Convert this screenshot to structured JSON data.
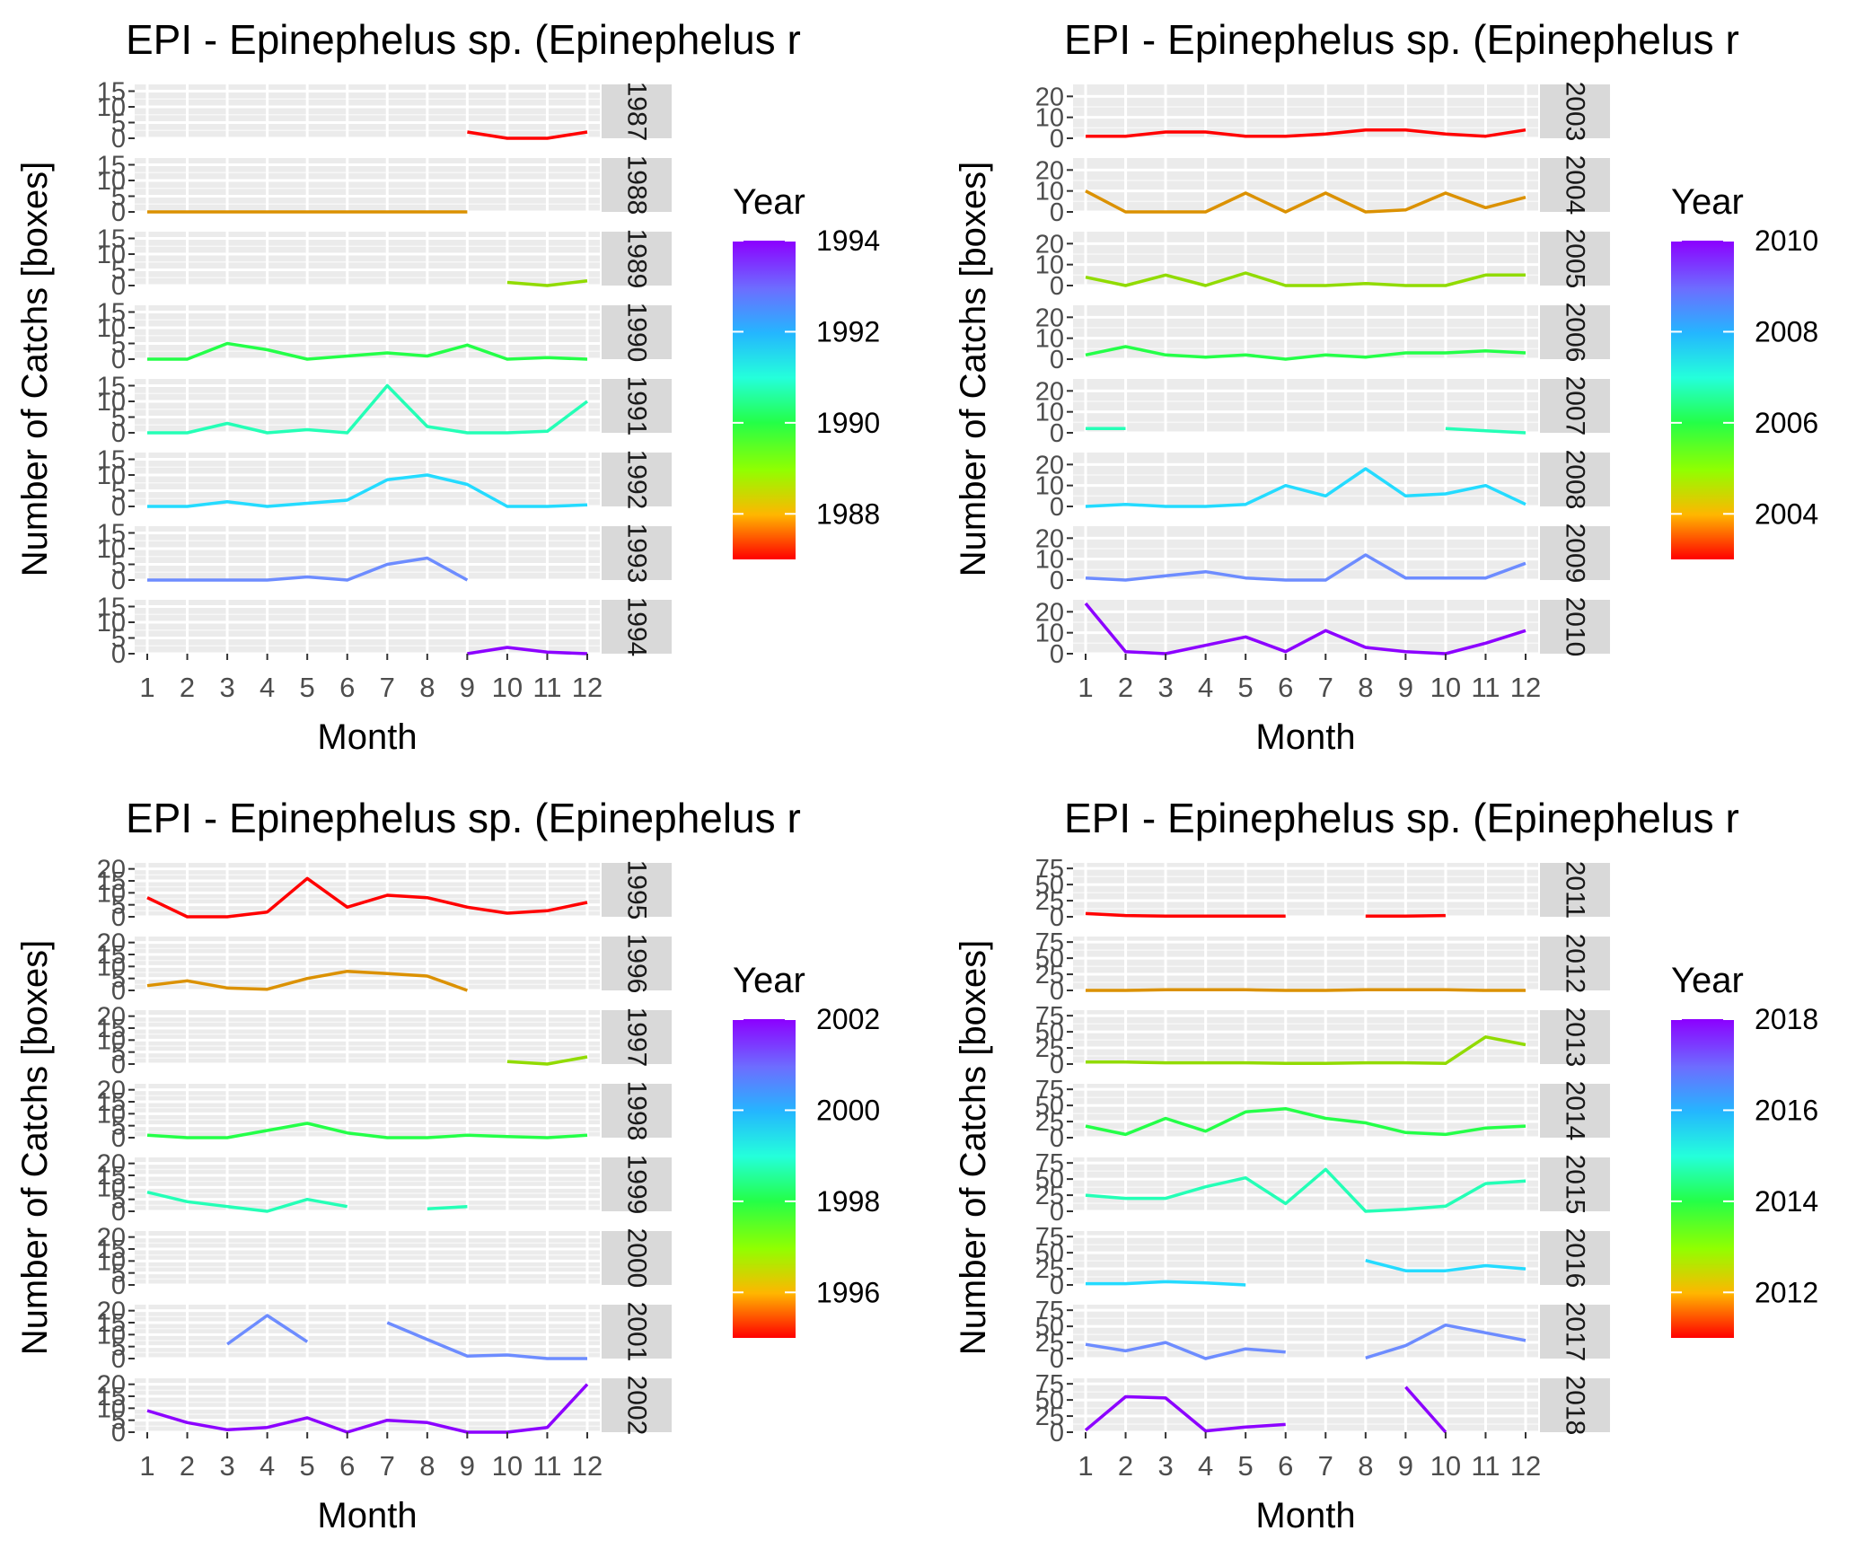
{
  "chart_data": [
    {
      "type": "line",
      "title": "EPI - Epinephelus sp. (Epinephelus r",
      "xlabel": "Month",
      "ylabel": "Number of Catchs [boxes]",
      "x": [
        1,
        2,
        3,
        4,
        5,
        6,
        7,
        8,
        9,
        10,
        11,
        12
      ],
      "y_ticks": [
        0,
        5,
        10,
        15
      ],
      "ylim": [
        0,
        16
      ],
      "legend": {
        "title": "Year",
        "ticks": [
          1988,
          1990,
          1992,
          1994
        ],
        "range": [
          1987,
          1994
        ],
        "placement": "right"
      },
      "panels": [
        {
          "strip": "1987",
          "color": "#ff0000",
          "values": [
            null,
            null,
            null,
            null,
            null,
            null,
            null,
            null,
            2,
            0,
            0,
            2
          ]
        },
        {
          "strip": "1988",
          "color": "#db9100",
          "values": [
            0,
            0,
            0,
            0,
            0,
            0,
            0,
            0,
            0,
            null,
            null,
            null
          ]
        },
        {
          "strip": "1989",
          "color": "#91db00",
          "values": [
            null,
            null,
            null,
            null,
            null,
            null,
            null,
            null,
            null,
            1,
            0,
            1.5
          ]
        },
        {
          "strip": "1990",
          "color": "#24ff48",
          "values": [
            0,
            0,
            5,
            3,
            0,
            1,
            2,
            1,
            4.5,
            0,
            0.5,
            0
          ]
        },
        {
          "strip": "1991",
          "color": "#24ffb6",
          "values": [
            0,
            0,
            3,
            0,
            1,
            0,
            15,
            2,
            0,
            0,
            0.5,
            10
          ]
        },
        {
          "strip": "1992",
          "color": "#24dbff",
          "values": [
            0,
            0,
            1.5,
            0,
            1,
            2,
            8.5,
            10,
            7,
            0,
            0,
            0.5
          ]
        },
        {
          "strip": "1993",
          "color": "#6d8cff",
          "values": [
            0,
            0,
            0,
            0,
            1,
            0,
            5,
            7,
            0,
            null,
            null,
            null
          ]
        },
        {
          "strip": "1994",
          "color": "#8c00ff",
          "values": [
            null,
            null,
            null,
            null,
            null,
            null,
            null,
            null,
            0,
            2,
            0.5,
            0
          ]
        }
      ]
    },
    {
      "type": "line",
      "title": "EPI - Epinephelus sp. (Epinephelus r",
      "xlabel": "Month",
      "ylabel": "Number of Catchs [boxes]",
      "x": [
        1,
        2,
        3,
        4,
        5,
        6,
        7,
        8,
        9,
        10,
        11,
        12
      ],
      "y_ticks": [
        0,
        10,
        20
      ],
      "ylim": [
        0,
        24
      ],
      "legend": {
        "title": "Year",
        "ticks": [
          2004,
          2006,
          2008,
          2010
        ],
        "range": [
          2003,
          2010
        ],
        "placement": "right"
      },
      "panels": [
        {
          "strip": "2003",
          "color": "#ff0000",
          "values": [
            1,
            1,
            3,
            3,
            1,
            1,
            2,
            4,
            4,
            2,
            1,
            4
          ]
        },
        {
          "strip": "2004",
          "color": "#db9100",
          "values": [
            10,
            0,
            0,
            0,
            9,
            0,
            9,
            0,
            1,
            9,
            2,
            7
          ]
        },
        {
          "strip": "2005",
          "color": "#91db00",
          "values": [
            4,
            0,
            5,
            0,
            6,
            0,
            0,
            1,
            0,
            0,
            5,
            5
          ]
        },
        {
          "strip": "2006",
          "color": "#24ff48",
          "values": [
            2,
            6,
            2,
            1,
            2,
            0,
            2,
            1,
            3,
            3,
            4,
            3
          ]
        },
        {
          "strip": "2007",
          "color": "#24ffb6",
          "values": [
            2,
            2,
            null,
            null,
            null,
            null,
            null,
            null,
            null,
            2,
            1,
            0
          ]
        },
        {
          "strip": "2008",
          "color": "#24dbff",
          "values": [
            0,
            1,
            0,
            0,
            1,
            10,
            5,
            18,
            5,
            6,
            10,
            1
          ]
        },
        {
          "strip": "2009",
          "color": "#6d8cff",
          "values": [
            1,
            0,
            2,
            4,
            1,
            0,
            0,
            12,
            1,
            1,
            1,
            8
          ]
        },
        {
          "strip": "2010",
          "color": "#8c00ff",
          "values": [
            24,
            1,
            0,
            4,
            8,
            1,
            11,
            3,
            1,
            0,
            5,
            11
          ]
        }
      ]
    },
    {
      "type": "line",
      "title": "EPI - Epinephelus sp. (Epinephelus r",
      "xlabel": "Month",
      "ylabel": "Number of Catchs [boxes]",
      "x": [
        1,
        2,
        3,
        4,
        5,
        6,
        7,
        8,
        9,
        10,
        11,
        12
      ],
      "y_ticks": [
        0,
        5,
        10,
        15,
        20
      ],
      "ylim": [
        0,
        21
      ],
      "legend": {
        "title": "Year",
        "ticks": [
          1996,
          1998,
          2000,
          2002
        ],
        "range": [
          1995,
          2002
        ],
        "placement": "right"
      },
      "panels": [
        {
          "strip": "1995",
          "color": "#ff0000",
          "values": [
            8,
            0,
            0,
            2,
            16,
            4,
            9,
            8,
            4,
            1.5,
            2.5,
            6
          ]
        },
        {
          "strip": "1996",
          "color": "#db9100",
          "values": [
            2,
            4,
            1,
            0.5,
            5,
            8,
            7,
            6,
            0,
            null,
            null,
            null
          ]
        },
        {
          "strip": "1997",
          "color": "#91db00",
          "values": [
            null,
            null,
            null,
            null,
            null,
            null,
            null,
            null,
            null,
            1,
            0,
            3
          ]
        },
        {
          "strip": "1998",
          "color": "#24ff48",
          "values": [
            1,
            0,
            0,
            3,
            6,
            2,
            0,
            0,
            1,
            0.5,
            0,
            1
          ]
        },
        {
          "strip": "1999",
          "color": "#24ffb6",
          "values": [
            8,
            4,
            2,
            0,
            5,
            2,
            null,
            1,
            2,
            null,
            null,
            null
          ]
        },
        {
          "strip": "2000",
          "color": "#24dbff",
          "values": [
            null,
            null,
            null,
            null,
            null,
            null,
            null,
            null,
            null,
            null,
            null,
            null
          ]
        },
        {
          "strip": "2001",
          "color": "#6d8cff",
          "values": [
            null,
            null,
            6,
            18,
            7,
            null,
            15,
            8,
            1,
            1.5,
            0,
            0
          ]
        },
        {
          "strip": "2002",
          "color": "#8c00ff",
          "values": [
            9,
            4,
            1,
            2,
            6,
            0,
            5,
            4,
            0,
            0,
            2,
            20
          ]
        }
      ]
    },
    {
      "type": "line",
      "title": "EPI - Epinephelus sp. (Epinephelus r",
      "xlabel": "Month",
      "ylabel": "Number of Catchs [boxes]",
      "x": [
        1,
        2,
        3,
        4,
        5,
        6,
        7,
        8,
        9,
        10,
        11,
        12
      ],
      "y_ticks": [
        0,
        25,
        50,
        75
      ],
      "ylim": [
        0,
        78
      ],
      "legend": {
        "title": "Year",
        "ticks": [
          2012,
          2014,
          2016,
          2018
        ],
        "range": [
          2011,
          2018
        ],
        "placement": "right"
      },
      "panels": [
        {
          "strip": "2011",
          "color": "#ff0000",
          "values": [
            5,
            2,
            1,
            1,
            1,
            1,
            null,
            1,
            1,
            2,
            null,
            null
          ]
        },
        {
          "strip": "2012",
          "color": "#db9100",
          "values": [
            0,
            0,
            1,
            1,
            1,
            0,
            0,
            1,
            1,
            1,
            0,
            0
          ]
        },
        {
          "strip": "2013",
          "color": "#91db00",
          "values": [
            3,
            3,
            2,
            2,
            2,
            1,
            1,
            2,
            2,
            1,
            42,
            30
          ]
        },
        {
          "strip": "2014",
          "color": "#24ff48",
          "values": [
            18,
            5,
            30,
            10,
            40,
            45,
            30,
            23,
            8,
            5,
            15,
            18
          ]
        },
        {
          "strip": "2015",
          "color": "#24ffb6",
          "values": [
            25,
            20,
            20,
            38,
            52,
            12,
            65,
            0,
            3,
            8,
            43,
            47
          ]
        },
        {
          "strip": "2016",
          "color": "#24dbff",
          "values": [
            2,
            2,
            5,
            3,
            0,
            null,
            null,
            38,
            22,
            22,
            30,
            25
          ]
        },
        {
          "strip": "2017",
          "color": "#6d8cff",
          "values": [
            22,
            12,
            25,
            0,
            15,
            10,
            null,
            1,
            20,
            52,
            40,
            28
          ]
        },
        {
          "strip": "2018",
          "color": "#8c00ff",
          "values": [
            3,
            55,
            53,
            2,
            8,
            12,
            null,
            null,
            70,
            0,
            null,
            null
          ]
        }
      ]
    }
  ]
}
